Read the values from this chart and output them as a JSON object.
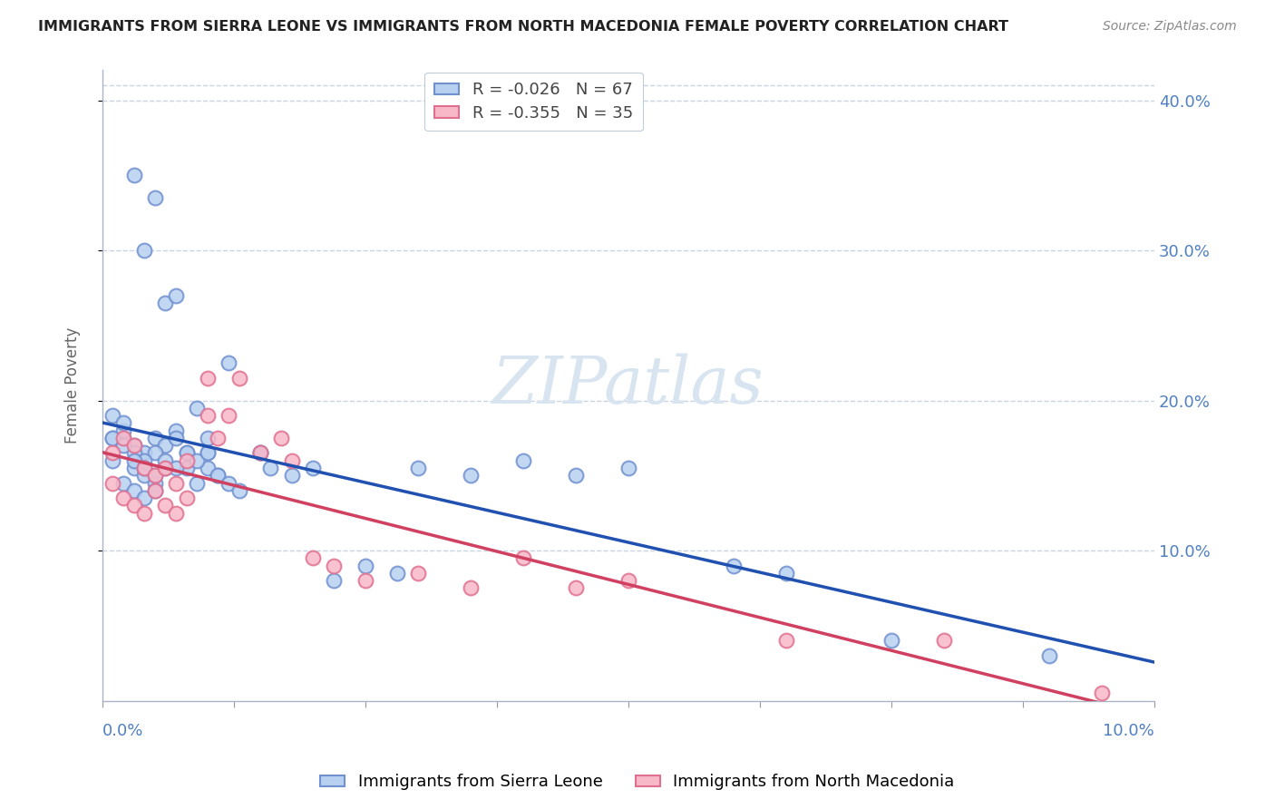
{
  "title": "IMMIGRANTS FROM SIERRA LEONE VS IMMIGRANTS FROM NORTH MACEDONIA FEMALE POVERTY CORRELATION CHART",
  "source": "Source: ZipAtlas.com",
  "series1_name": "Immigrants from Sierra Leone",
  "series2_name": "Immigrants from North Macedonia",
  "series1_face_color": "#b8d0f0",
  "series1_edge_color": "#7090d0",
  "series2_face_color": "#f8b8c8",
  "series2_edge_color": "#e07090",
  "series1_line_color": "#2050b0",
  "series2_line_color": "#d04060",
  "background_color": "#ffffff",
  "grid_color": "#c8d4e4",
  "right_tick_color": "#5080c0",
  "ylabel_color": "#666666",
  "title_color": "#222222",
  "source_color": "#888888",
  "watermark_color": "#d8e4f0",
  "xlim": [
    0.0,
    0.1
  ],
  "ylim": [
    0.0,
    0.42
  ],
  "ytick_vals": [
    0.1,
    0.2,
    0.3,
    0.4
  ],
  "ytick_labels": [
    "10.0%",
    "20.0%",
    "30.0%",
    "40.0%"
  ],
  "r1": -0.026,
  "n1": 67,
  "r2": -0.355,
  "n2": 35,
  "sl_x": [
    0.002,
    0.003,
    0.004,
    0.005,
    0.006,
    0.007,
    0.008,
    0.009,
    0.01,
    0.011,
    0.001,
    0.002,
    0.003,
    0.004,
    0.005,
    0.006,
    0.007,
    0.008,
    0.009,
    0.01,
    0.001,
    0.002,
    0.003,
    0.004,
    0.005,
    0.001,
    0.002,
    0.003,
    0.004,
    0.005,
    0.001,
    0.002,
    0.003,
    0.004,
    0.005,
    0.006,
    0.007,
    0.008,
    0.009,
    0.01,
    0.011,
    0.012,
    0.013,
    0.015,
    0.016,
    0.018,
    0.02,
    0.022,
    0.025,
    0.028,
    0.03,
    0.035,
    0.04,
    0.045,
    0.05,
    0.003,
    0.004,
    0.005,
    0.006,
    0.007,
    0.01,
    0.012,
    0.015,
    0.06,
    0.065,
    0.075,
    0.09
  ],
  "sl_y": [
    0.175,
    0.17,
    0.165,
    0.175,
    0.17,
    0.18,
    0.165,
    0.195,
    0.165,
    0.15,
    0.175,
    0.18,
    0.155,
    0.15,
    0.165,
    0.155,
    0.175,
    0.155,
    0.145,
    0.155,
    0.19,
    0.185,
    0.165,
    0.16,
    0.145,
    0.16,
    0.145,
    0.14,
    0.135,
    0.14,
    0.175,
    0.17,
    0.16,
    0.155,
    0.15,
    0.16,
    0.155,
    0.165,
    0.16,
    0.175,
    0.15,
    0.145,
    0.14,
    0.165,
    0.155,
    0.15,
    0.155,
    0.08,
    0.09,
    0.085,
    0.155,
    0.15,
    0.16,
    0.15,
    0.155,
    0.35,
    0.3,
    0.335,
    0.265,
    0.27,
    0.165,
    0.225,
    0.165,
    0.09,
    0.085,
    0.04,
    0.03
  ],
  "nm_x": [
    0.001,
    0.002,
    0.003,
    0.004,
    0.005,
    0.006,
    0.007,
    0.008,
    0.001,
    0.002,
    0.003,
    0.004,
    0.005,
    0.006,
    0.007,
    0.008,
    0.01,
    0.01,
    0.011,
    0.012,
    0.013,
    0.015,
    0.017,
    0.018,
    0.02,
    0.022,
    0.025,
    0.03,
    0.035,
    0.04,
    0.045,
    0.05,
    0.065,
    0.08,
    0.095
  ],
  "nm_y": [
    0.165,
    0.175,
    0.17,
    0.155,
    0.15,
    0.155,
    0.145,
    0.16,
    0.145,
    0.135,
    0.13,
    0.125,
    0.14,
    0.13,
    0.125,
    0.135,
    0.19,
    0.215,
    0.175,
    0.19,
    0.215,
    0.165,
    0.175,
    0.16,
    0.095,
    0.09,
    0.08,
    0.085,
    0.075,
    0.095,
    0.075,
    0.08,
    0.04,
    0.04,
    0.005
  ]
}
